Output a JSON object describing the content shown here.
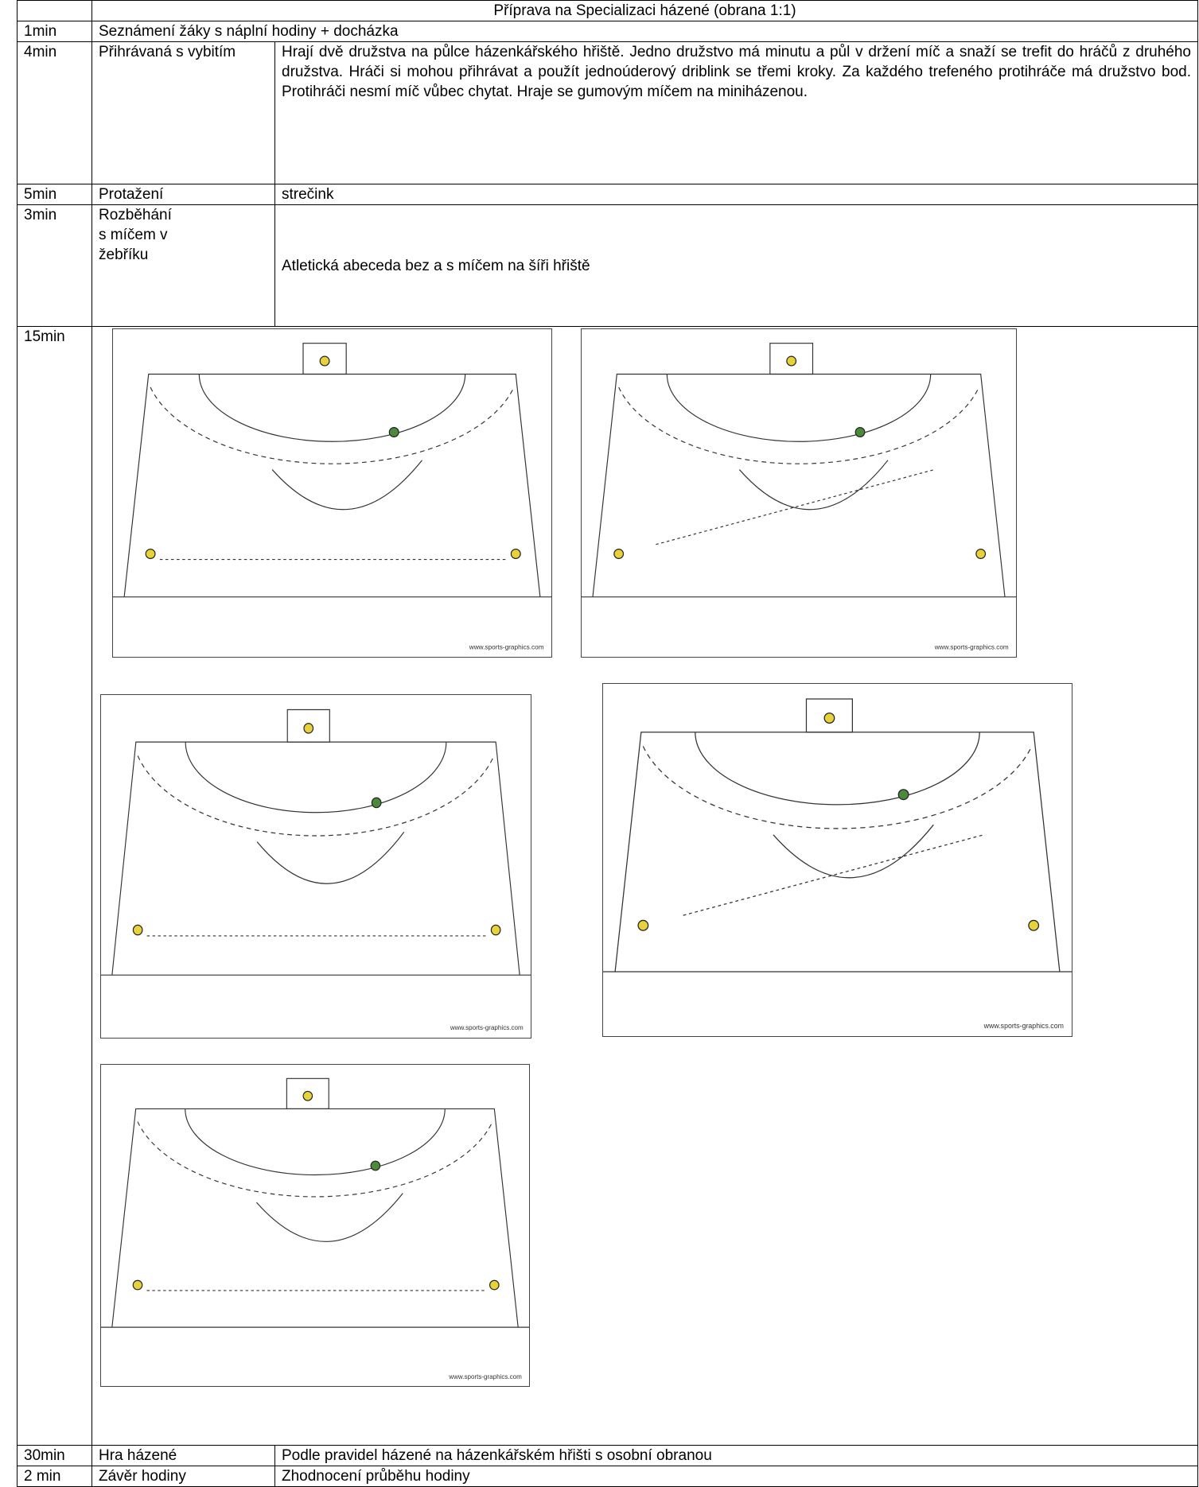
{
  "title": "Příprava na Specializaci házené (obrana 1:1)",
  "rows": [
    {
      "time": "1min",
      "activity": "Seznámení žáky s náplní hodiny + docházka"
    },
    {
      "time": "4min",
      "activity": "Přihrávaná s vybitím",
      "description": "Hrají dvě družstva na půlce házenkářského hřiště. Jedno družstvo má minutu a půl v držení míč a snaží se trefit do hráčů z druhého družstva. Hráči si mohou přihrávat a použít jednoúderový driblink se třemi kroky. Za každého trefeného protihráče má družstvo bod. Protihráči nesmí míč vůbec chytat. Hraje se gumovým míčem na miniházenou."
    },
    {
      "time": "5min",
      "activity": "Protažení",
      "description": "strečink"
    },
    {
      "time": "3min",
      "activity_lines": [
        "Rozběhání",
        "s míčem v",
        "žebříku"
      ],
      "description": "Atletická abeceda bez a s míčem na šíři hřiště"
    },
    {
      "time": "15min",
      "diagrams": [
        {
          "credit": "www.sports-graphics.com"
        },
        {
          "credit": "www.sports-graphics.com"
        },
        {
          "credit": "www.sports-graphics.com"
        },
        {
          "credit": "www.sports-graphics.com"
        },
        {
          "credit": "www.sports-graphics.com"
        }
      ]
    },
    {
      "time": "30min",
      "activity": "Hra házené",
      "description": "Podle pravidel házené na házenkářském hřišti s osobní obranou"
    },
    {
      "time": "2 min",
      "activity": "Závěr hodiny",
      "description": "Zhodnocení průběhu hodiny"
    }
  ]
}
